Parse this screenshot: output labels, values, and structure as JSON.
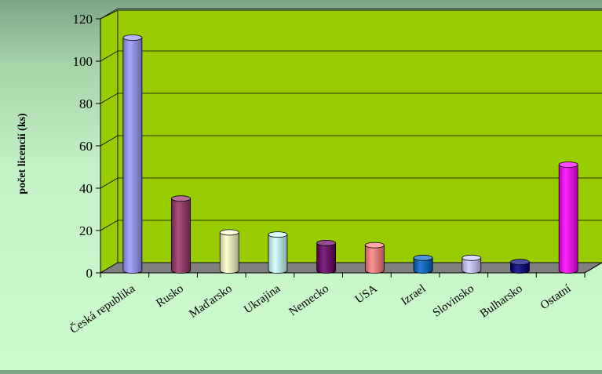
{
  "chart_data": {
    "type": "bar",
    "title": "",
    "xlabel": "",
    "ylabel": "počet licencií (ks)",
    "ylim": [
      0,
      120
    ],
    "yticks": [
      0,
      20,
      40,
      60,
      80,
      100,
      120
    ],
    "grid": true,
    "style": "3d-cylinder",
    "categories": [
      "Česká republika",
      "Rusko",
      "Maďarsko",
      "Ukrajina",
      "Nemecko",
      "USA",
      "Izrael",
      "Slovinsko",
      "Bulharsko",
      "Ostatní"
    ],
    "values": [
      110,
      34,
      18,
      17,
      13,
      12,
      6,
      6,
      4,
      50
    ],
    "colors": [
      "#9999ff",
      "#993366",
      "#ffffcc",
      "#ccffff",
      "#660066",
      "#ff8080",
      "#0066cc",
      "#ccccff",
      "#000080",
      "#ff00ff"
    ],
    "plot_background": "#99cc00",
    "floor_color": "#808080"
  }
}
